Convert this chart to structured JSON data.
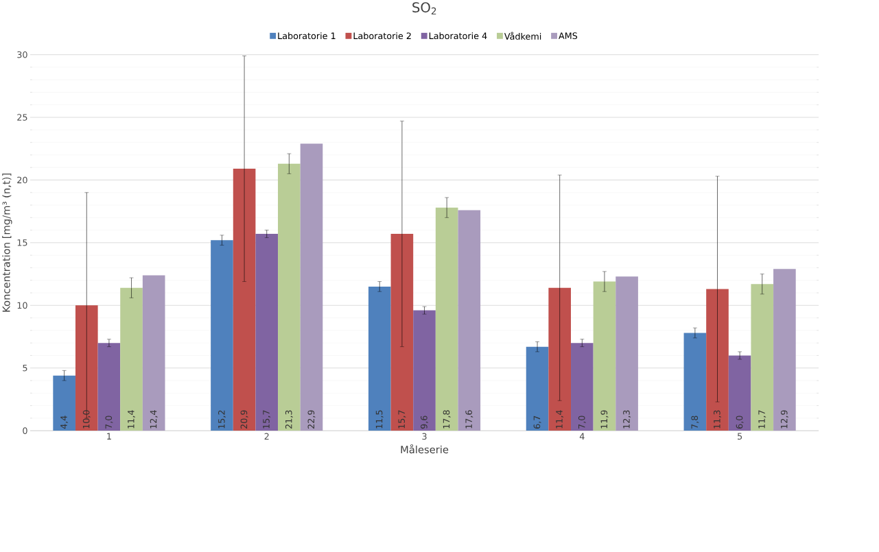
{
  "chart_data": {
    "type": "bar",
    "title": "SO$_{2}$",
    "xlabel": "Måleserie",
    "ylabel": "Koncentration [mg/m³ (n,t)]",
    "categories": [
      "1",
      "2",
      "3",
      "4",
      "5"
    ],
    "series": [
      {
        "name": "Laboratorie 1",
        "color": "#4f81bd",
        "values": [
          4.4,
          15.2,
          11.5,
          6.7,
          7.8
        ],
        "errors": [
          0.4,
          0.4,
          0.4,
          0.4,
          0.4
        ],
        "value_labels": [
          "4,4",
          "15,2",
          "11,5",
          "6,7",
          "7,8"
        ]
      },
      {
        "name": "Laboratorie 2",
        "color": "#c0504d",
        "values": [
          10.0,
          20.9,
          15.7,
          11.4,
          11.3
        ],
        "errors": [
          9,
          9,
          9,
          9,
          9
        ],
        "value_labels": [
          "10,0",
          "20,9",
          "15,7",
          "11,4",
          "11,3"
        ]
      },
      {
        "name": "Laboratorie 4",
        "color": "#8064a2",
        "values": [
          7.0,
          15.7,
          9.6,
          7.0,
          6.0
        ],
        "errors": [
          0.3,
          0.3,
          0.3,
          0.3,
          0.3
        ],
        "value_labels": [
          "7,0",
          "15,7",
          "9,6",
          "7,0",
          "6,0"
        ]
      },
      {
        "name": "Vådkemi",
        "color": "#b9cd96",
        "values": [
          11.4,
          21.3,
          17.8,
          11.9,
          11.7
        ],
        "errors": [
          0.8,
          0.8,
          0.8,
          0.8,
          0.8
        ],
        "value_labels": [
          "11,4",
          "21,3",
          "17,8",
          "11,9",
          "11,7"
        ]
      },
      {
        "name": "AMS",
        "color": "#a99bbd",
        "values": [
          12.4,
          22.9,
          17.6,
          12.3,
          12.9
        ],
        "value_labels": [
          "12,4",
          "22,9",
          "17,6",
          "12,3",
          "12,9"
        ]
      }
    ],
    "ylim": [
      0,
      30
    ],
    "yticks": [
      0,
      5,
      10,
      15,
      20,
      25,
      30
    ],
    "grid": "y",
    "legend": "top"
  }
}
